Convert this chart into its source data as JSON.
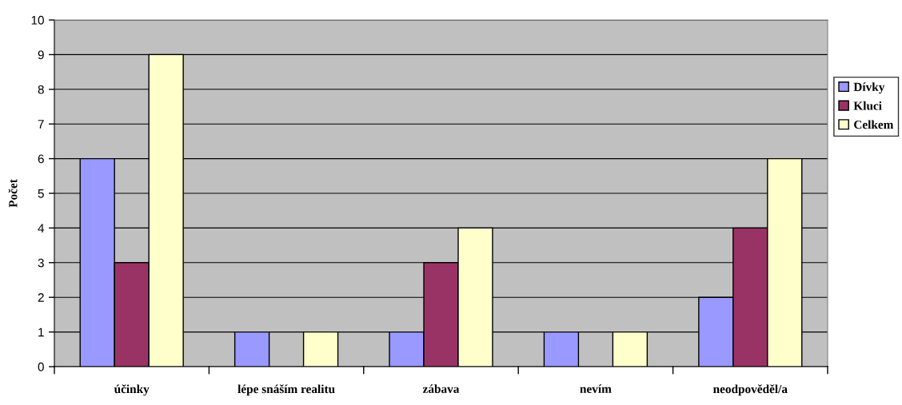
{
  "chart_data": {
    "type": "bar",
    "ylabel": "Počet",
    "categories": [
      "účinky",
      "lépe snáším realitu",
      "zábava",
      "nevím",
      "neodpověděl/a"
    ],
    "series": [
      {
        "name": "Dívky",
        "color": "#9999ff",
        "values": [
          6,
          1,
          1,
          1,
          2
        ]
      },
      {
        "name": "Kluci",
        "color": "#993366",
        "values": [
          3,
          null,
          3,
          null,
          4
        ]
      },
      {
        "name": "Celkem",
        "color": "#ffffcc",
        "values": [
          9,
          1,
          4,
          1,
          6
        ]
      }
    ],
    "ylim": [
      0,
      10
    ],
    "yticks": [
      0,
      1,
      2,
      3,
      4,
      5,
      6,
      7,
      8,
      9,
      10
    ],
    "grid": "y",
    "legend": "right"
  }
}
